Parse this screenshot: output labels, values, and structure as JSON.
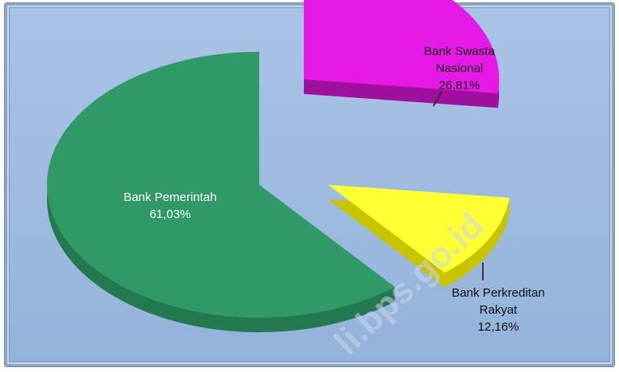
{
  "chart_data": {
    "type": "pie",
    "title": "",
    "style": "exploded 3D pie",
    "background_color": "#9dbbe0",
    "slices": [
      {
        "label_line1": "Bank Pemerintah",
        "label_line2": "",
        "value": 61.03,
        "value_text": "61,03%",
        "color": "#2f9a66",
        "side_color": "#247a50"
      },
      {
        "label_line1": "Bank Swasta",
        "label_line2": "Nasional",
        "value": 26.81,
        "value_text": "26,81%",
        "color": "#e619e6",
        "side_color": "#a0109e"
      },
      {
        "label_line1": "Bank Perkreditan",
        "label_line2": "Rakyat",
        "value": 12.16,
        "value_text": "12,16%",
        "color": "#ffff33",
        "side_color": "#c9c400"
      }
    ]
  },
  "watermark": "li.bps.go.id"
}
